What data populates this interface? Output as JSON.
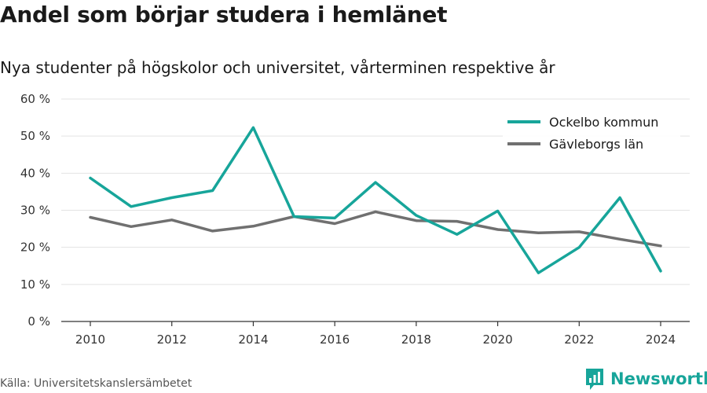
{
  "title": "Andel som börjar studera i hemlänet",
  "subtitle": "Nya studenter på högskolor och universitet, vårterminen respektive år",
  "source": "Källa: Universitetskanslersämbetet",
  "brand": {
    "name": "Newsworthy",
    "icon": "newsworthy-logo-icon",
    "color": "#17a59a"
  },
  "chart_data": {
    "type": "line",
    "x": [
      2010,
      2011,
      2012,
      2013,
      2014,
      2015,
      2016,
      2017,
      2018,
      2019,
      2020,
      2021,
      2022,
      2023,
      2024
    ],
    "x_ticks": [
      "2010",
      "2012",
      "2014",
      "2016",
      "2018",
      "2020",
      "2022",
      "2024"
    ],
    "y_ticks": [
      "0 %",
      "10 %",
      "20 %",
      "30 %",
      "40 %",
      "50 %",
      "60 %"
    ],
    "ylim": [
      0,
      60
    ],
    "grid": true,
    "legend_position": "top-right",
    "series": [
      {
        "name": "Ockelbo kommun",
        "color": "#17a59a",
        "values": [
          38.7,
          31.0,
          33.4,
          35.3,
          52.3,
          28.3,
          27.9,
          37.5,
          28.6,
          23.5,
          29.8,
          13.1,
          20.0,
          33.4,
          13.6
        ]
      },
      {
        "name": "Gävleborgs län",
        "color": "#707070",
        "values": [
          28.1,
          25.6,
          27.4,
          24.4,
          25.7,
          28.3,
          26.4,
          29.6,
          27.2,
          27.0,
          24.8,
          23.9,
          24.2,
          22.2,
          20.4
        ]
      }
    ]
  }
}
